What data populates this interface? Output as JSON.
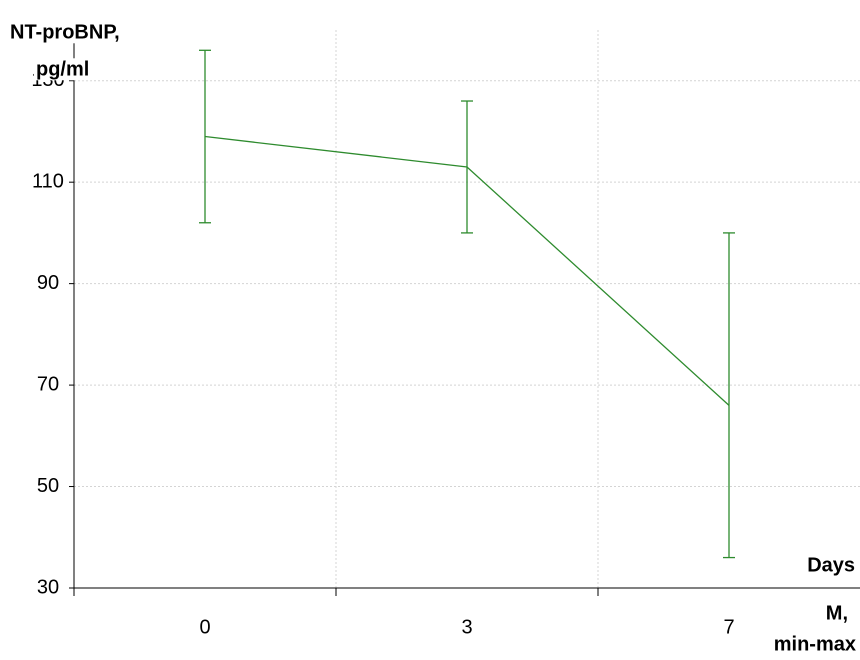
{
  "chart_data": {
    "type": "line",
    "y_label": [
      "NT-proBNP,",
      "pg/ml"
    ],
    "x_label": "Days",
    "note": [
      "M,",
      "min-max"
    ],
    "categories": [
      "0",
      "3",
      "7"
    ],
    "values": [
      119,
      113,
      66
    ],
    "min": [
      102,
      100,
      36
    ],
    "max": [
      136,
      126,
      100
    ],
    "color": "#2e8b2e",
    "ylim": [
      30,
      140
    ],
    "yticks": [
      30,
      50,
      70,
      90,
      110,
      130
    ],
    "grid": true
  }
}
